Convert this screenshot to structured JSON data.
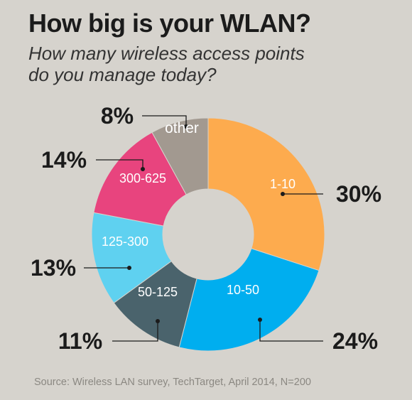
{
  "header": {
    "title": "How big is your WLAN?",
    "subtitle_line1": "How many wireless access points",
    "subtitle_line2": "do you manage today?"
  },
  "footer": {
    "source": "Source: Wireless LAN survey, TechTarget, April 2014, N=200"
  },
  "colors": {
    "background": "#d6d3cd",
    "text": "#1b1b1b",
    "source_text": "#8b8882"
  },
  "chart_data": {
    "type": "pie",
    "donut": true,
    "title": "How big is your WLAN?",
    "subtitle": "How many wireless access points do you manage today?",
    "unit": "%",
    "slices": [
      {
        "label": "1-10",
        "value": 30,
        "value_label": "30%",
        "color": "#fdab4e"
      },
      {
        "label": "10-50",
        "value": 24,
        "value_label": "24%",
        "color": "#00aeef"
      },
      {
        "label": "50-125",
        "value": 11,
        "value_label": "11%",
        "color": "#4a636c"
      },
      {
        "label": "125-300",
        "value": 13,
        "value_label": "13%",
        "color": "#5fd1f0"
      },
      {
        "label": "300-625",
        "value": 14,
        "value_label": "14%",
        "color": "#e8447e"
      },
      {
        "label": "other",
        "value": 8,
        "value_label": "8%",
        "color": "#a29990"
      }
    ]
  }
}
